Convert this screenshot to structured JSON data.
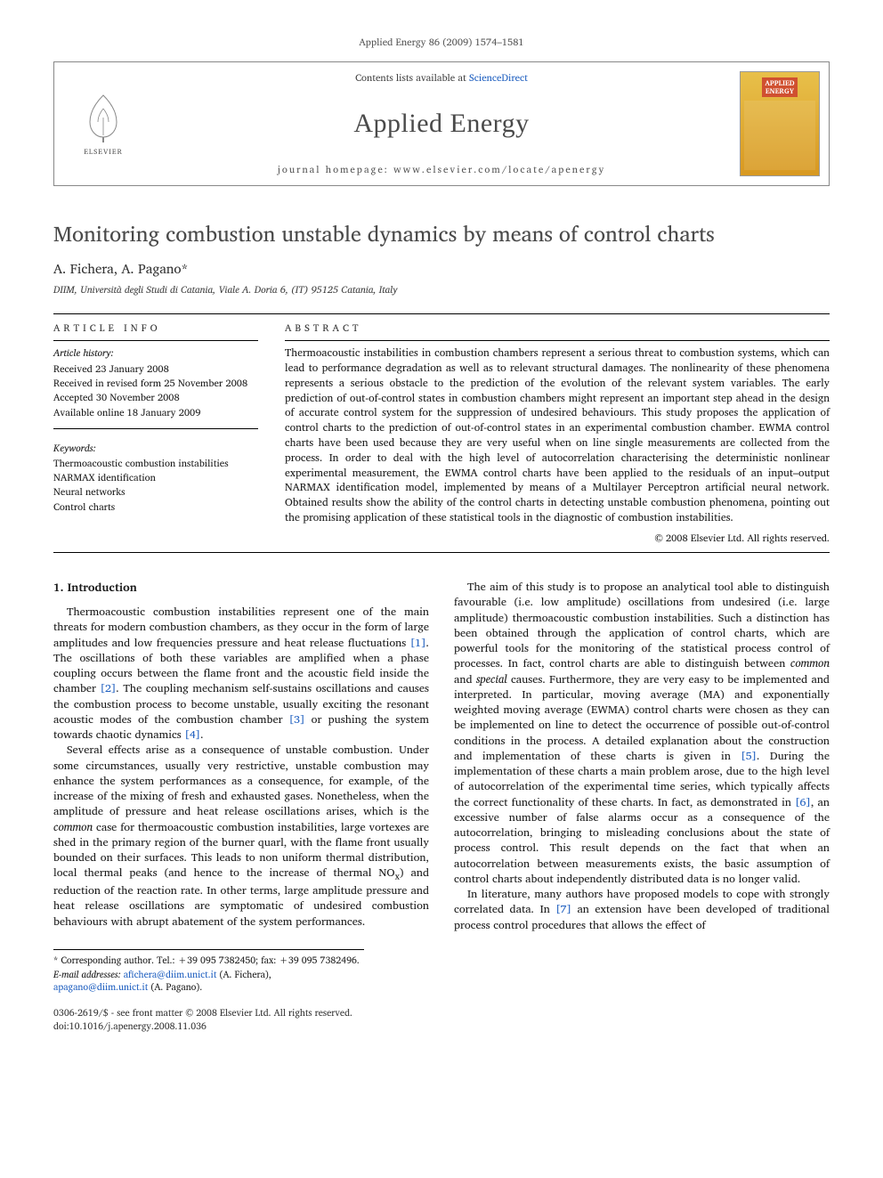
{
  "running_head": "Applied Energy 86 (2009) 1574–1581",
  "masthead": {
    "contents_prefix": "Contents lists available at ",
    "contents_link": "ScienceDirect",
    "journal": "Applied Energy",
    "homepage_label": "journal homepage: www.elsevier.com/locate/apenergy",
    "publisher_logo_label": "ELSEVIER",
    "cover_label_1": "APPLIED",
    "cover_label_2": "ENERGY"
  },
  "title": "Monitoring combustion unstable dynamics by means of control charts",
  "authors": "A. Fichera, A. Pagano",
  "corr_marker": "*",
  "affiliation": "DIIM, Università degli Studi di Catania, Viale A. Doria 6, (IT) 95125 Catania, Italy",
  "info": {
    "label": "ARTICLE INFO",
    "history_head": "Article history:",
    "history": [
      "Received 23 January 2008",
      "Received in revised form 25 November 2008",
      "Accepted 30 November 2008",
      "Available online 18 January 2009"
    ],
    "kw_head": "Keywords:",
    "keywords": [
      "Thermoacoustic combustion instabilities",
      "NARMAX identification",
      "Neural networks",
      "Control charts"
    ]
  },
  "abstract": {
    "label": "ABSTRACT",
    "text": "Thermoacoustic instabilities in combustion chambers represent a serious threat to combustion systems, which can lead to performance degradation as well as to relevant structural damages. The nonlinearity of these phenomena represents a serious obstacle to the prediction of the evolution of the relevant system variables. The early prediction of out-of-control states in combustion chambers might represent an important step ahead in the design of accurate control system for the suppression of undesired behaviours. This study proposes the application of control charts to the prediction of out-of-control states in an experimental combustion chamber. EWMA control charts have been used because they are very useful when on line single measurements are collected from the process. In order to deal with the high level of autocorrelation characterising the deterministic nonlinear experimental measurement, the EWMA control charts have been applied to the residuals of an input–output NARMAX identification model, implemented by means of a Multilayer Perceptron artificial neural network. Obtained results show the ability of the control charts in detecting unstable combustion phenomena, pointing out the promising application of these statistical tools in the diagnostic of combustion instabilities.",
    "copyright": "© 2008 Elsevier Ltd. All rights reserved."
  },
  "body": {
    "h1": "1. Introduction",
    "p1": "Thermoacoustic combustion instabilities represent one of the main threats for modern combustion chambers, as they occur in the form of large amplitudes and low frequencies pressure and heat release fluctuations [1]. The oscillations of both these variables are amplified when a phase coupling occurs between the flame front and the acoustic field inside the chamber [2]. The coupling mechanism self-sustains oscillations and causes the combustion process to become unstable, usually exciting the resonant acoustic modes of the combustion chamber [3] or pushing the system towards chaotic dynamics [4].",
    "p2": "Several effects arise as a consequence of unstable combustion. Under some circumstances, usually very restrictive, unstable combustion may enhance the system performances as a consequence, for example, of the increase of the mixing of fresh and exhausted gases. Nonetheless, when the amplitude of pressure and heat release oscillations arises, which is the common case for thermoacoustic combustion instabilities, large vortexes are shed in the primary region of the burner quarl, with the flame front usually bounded on their surfaces. This leads to non uniform thermal distribution, local thermal peaks (and hence to the increase of thermal NOx) and reduction of the reaction rate. In other terms, large amplitude pressure and heat release oscillations are symptomatic of undesired combustion behaviours with abrupt abatement of the system performances.",
    "p3": "The aim of this study is to propose an analytical tool able to distinguish favourable (i.e. low amplitude) oscillations from undesired (i.e. large amplitude) thermoacoustic combustion instabilities. Such a distinction has been obtained through the application of control charts, which are powerful tools for the monitoring of the statistical process control of processes. In fact, control charts are able to distinguish between common and special causes. Furthermore, they are very easy to be implemented and interpreted. In particular, moving average (MA) and exponentially weighted moving average (EWMA) control charts were chosen as they can be implemented on line to detect the occurrence of possible out-of-control conditions in the process. A detailed explanation about the construction and implementation of these charts is given in [5]. During the implementation of these charts a main problem arose, due to the high level of autocorrelation of the experimental time series, which typically affects the correct functionality of these charts. In fact, as demonstrated in [6], an excessive number of false alarms occur as a consequence of the autocorrelation, bringing to misleading conclusions about the state of process control. This result depends on the fact that when an autocorrelation between measurements exists, the basic assumption of control charts about independently distributed data is no longer valid.",
    "p4": "In literature, many authors have proposed models to cope with strongly correlated data. In [7] an extension have been developed of traditional process control procedures that allows the effect of"
  },
  "footnotes": {
    "corr": "* Corresponding author. Tel.: +39 095 7382450; fax: +39 095 7382496.",
    "emails_label": "E-mail addresses:",
    "email1": "afichera@diim.unict.it",
    "email1_who": "(A. Fichera),",
    "email2": "apagano@diim.unict.it",
    "email2_who": "(A. Pagano)."
  },
  "footer": {
    "line1": "0306-2619/$ - see front matter © 2008 Elsevier Ltd. All rights reserved.",
    "line2": "doi:10.1016/j.apenergy.2008.11.036"
  },
  "colors": {
    "link": "#2060c0",
    "text": "#1a1a1a",
    "muted": "#4a4a4a",
    "cover_bg_top": "#e8c04a",
    "cover_bg_bot": "#d89820",
    "cover_badge": "#d05030"
  }
}
